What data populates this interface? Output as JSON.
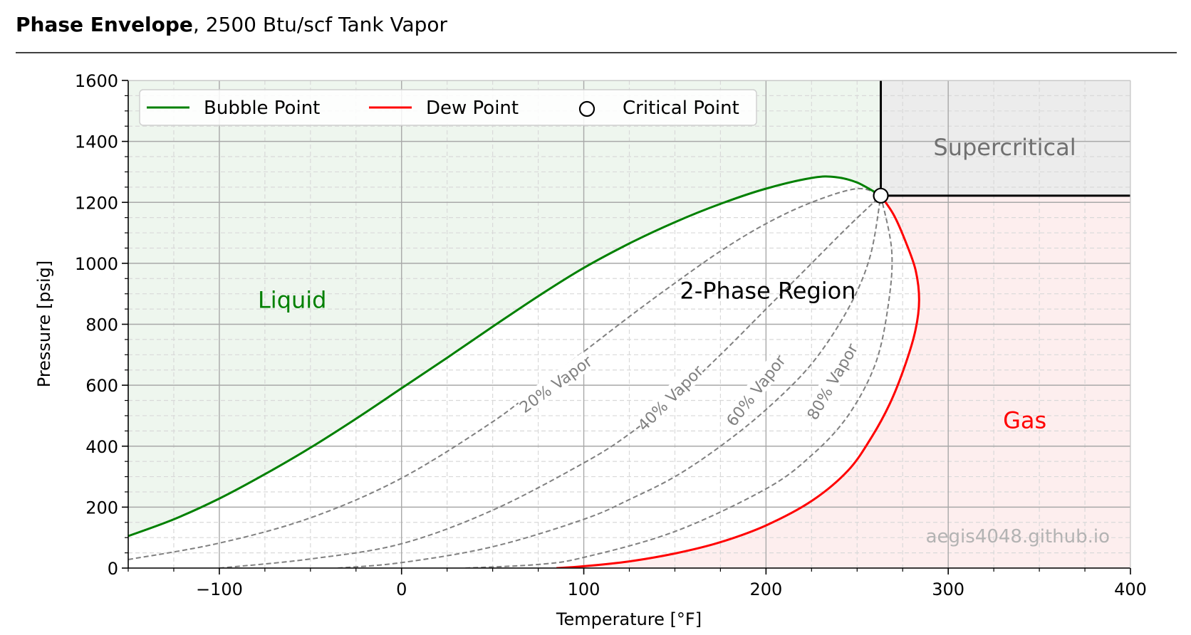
{
  "header": {
    "title_bold": "Phase Envelope",
    "title_rest": ", 2500 Btu/scf Tank Vapor"
  },
  "watermark": "aegis4048.github.io",
  "colors": {
    "bubble": "#008000",
    "dew": "#ff0000",
    "quality": "#808080",
    "liquid_fill": "#eef6ee",
    "gas_fill": "#fdeeee",
    "super_fill": "#ececec"
  },
  "chart_data": {
    "type": "line",
    "xlabel": "Temperature [°F]",
    "ylabel": "Pressure [psig]",
    "xlim": [
      -150,
      400
    ],
    "ylim": [
      0,
      1600
    ],
    "x_ticks": [
      -100,
      0,
      100,
      200,
      300,
      400
    ],
    "x_tick_labels": [
      "−100",
      "0",
      "100",
      "200",
      "300",
      "400"
    ],
    "y_ticks": [
      0,
      200,
      400,
      600,
      800,
      1000,
      1200,
      1400,
      1600
    ],
    "y_tick_labels": [
      "0",
      "200",
      "400",
      "600",
      "800",
      "1000",
      "1200",
      "1400",
      "1600"
    ],
    "grid": true,
    "legend_placement": "top-left",
    "legend": {
      "bubble": "Bubble Point",
      "dew": "Dew Point",
      "critical": "Critical Point"
    },
    "critical_point": {
      "t": 263,
      "p": 1222
    },
    "regions": {
      "liquid": "Liquid",
      "two_phase": "2-Phase Region",
      "gas": "Gas",
      "supercritical": "Supercritical"
    },
    "series": [
      {
        "name": "Bubble Point",
        "key": "bubble",
        "points": [
          [
            -150,
            105
          ],
          [
            -125,
            160
          ],
          [
            -100,
            228
          ],
          [
            -75,
            308
          ],
          [
            -50,
            395
          ],
          [
            -25,
            490
          ],
          [
            0,
            590
          ],
          [
            25,
            690
          ],
          [
            50,
            792
          ],
          [
            75,
            892
          ],
          [
            100,
            985
          ],
          [
            125,
            1065
          ],
          [
            150,
            1135
          ],
          [
            175,
            1195
          ],
          [
            200,
            1245
          ],
          [
            225,
            1280
          ],
          [
            238,
            1283
          ],
          [
            250,
            1265
          ],
          [
            263,
            1222
          ]
        ]
      },
      {
        "name": "Dew Point",
        "key": "dew",
        "points": [
          [
            85,
            0
          ],
          [
            100,
            6
          ],
          [
            125,
            22
          ],
          [
            150,
            48
          ],
          [
            175,
            85
          ],
          [
            200,
            140
          ],
          [
            225,
            220
          ],
          [
            245,
            320
          ],
          [
            258,
            430
          ],
          [
            268,
            540
          ],
          [
            276,
            660
          ],
          [
            282,
            780
          ],
          [
            284,
            880
          ],
          [
            282,
            980
          ],
          [
            276,
            1080
          ],
          [
            270,
            1160
          ],
          [
            263,
            1222
          ]
        ]
      },
      {
        "name": "20% Vapor",
        "key": "q20",
        "points": [
          [
            -150,
            28
          ],
          [
            -100,
            82
          ],
          [
            -50,
            165
          ],
          [
            0,
            295
          ],
          [
            50,
            480
          ],
          [
            75,
            595
          ],
          [
            100,
            710
          ],
          [
            125,
            825
          ],
          [
            150,
            935
          ],
          [
            175,
            1040
          ],
          [
            200,
            1130
          ],
          [
            225,
            1200
          ],
          [
            250,
            1245
          ],
          [
            263,
            1222
          ]
        ]
      },
      {
        "name": "40% Vapor",
        "key": "q40",
        "points": [
          [
            -100,
            0
          ],
          [
            -50,
            30
          ],
          [
            0,
            80
          ],
          [
            50,
            190
          ],
          [
            100,
            345
          ],
          [
            125,
            440
          ],
          [
            150,
            560
          ],
          [
            175,
            700
          ],
          [
            200,
            850
          ],
          [
            225,
            1000
          ],
          [
            245,
            1120
          ],
          [
            263,
            1222
          ]
        ]
      },
      {
        "name": "60% Vapor",
        "key": "q60",
        "points": [
          [
            -35,
            0
          ],
          [
            0,
            18
          ],
          [
            50,
            70
          ],
          [
            100,
            160
          ],
          [
            125,
            225
          ],
          [
            150,
            300
          ],
          [
            175,
            400
          ],
          [
            200,
            520
          ],
          [
            225,
            670
          ],
          [
            245,
            850
          ],
          [
            257,
            1020
          ],
          [
            263,
            1222
          ]
        ]
      },
      {
        "name": "80% Vapor",
        "key": "q80",
        "points": [
          [
            35,
            0
          ],
          [
            75,
            12
          ],
          [
            100,
            35
          ],
          [
            150,
            120
          ],
          [
            200,
            260
          ],
          [
            225,
            370
          ],
          [
            245,
            500
          ],
          [
            260,
            670
          ],
          [
            267,
            860
          ],
          [
            269,
            1040
          ],
          [
            263,
            1222
          ]
        ]
      }
    ],
    "quality_labels": [
      {
        "text": "20% Vapor",
        "t": 85,
        "p": 600,
        "angle": -36
      },
      {
        "text": "40% Vapor",
        "t": 148,
        "p": 555,
        "angle": -45
      },
      {
        "text": "60% Vapor",
        "t": 195,
        "p": 580,
        "angle": -52
      },
      {
        "text": "80% Vapor",
        "t": 237,
        "p": 610,
        "angle": -60
      }
    ]
  }
}
